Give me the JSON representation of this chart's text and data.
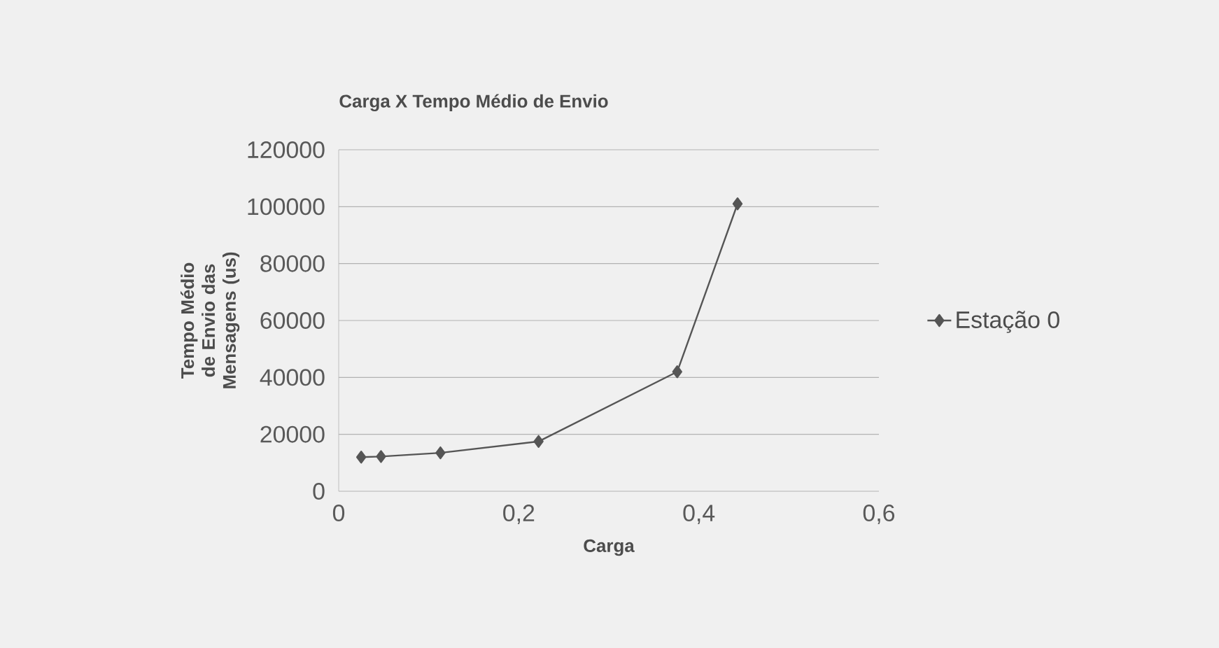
{
  "chart_data": {
    "type": "line",
    "title": "Carga X Tempo Médio de Envio",
    "xlabel": "Carga",
    "ylabel": "Tempo Médio de Envio das Mensagens (us)",
    "xlim": [
      0,
      0.6
    ],
    "ylim": [
      0,
      120000
    ],
    "xticks": [
      {
        "value": 0,
        "label": "0"
      },
      {
        "value": 0.2,
        "label": "0,2"
      },
      {
        "value": 0.4,
        "label": "0,4"
      },
      {
        "value": 0.6,
        "label": "0,6"
      }
    ],
    "yticks": [
      0,
      20000,
      40000,
      60000,
      80000,
      100000,
      120000
    ],
    "grid": "y",
    "legend": "right",
    "marker": "diamond",
    "line_style": "solid",
    "series": [
      {
        "name": "Estação 0",
        "color": "#555555",
        "x": [
          0.025,
          0.047,
          0.113,
          0.222,
          0.376,
          0.443
        ],
        "values": [
          12000,
          12200,
          13500,
          17500,
          42000,
          101000
        ]
      }
    ]
  }
}
